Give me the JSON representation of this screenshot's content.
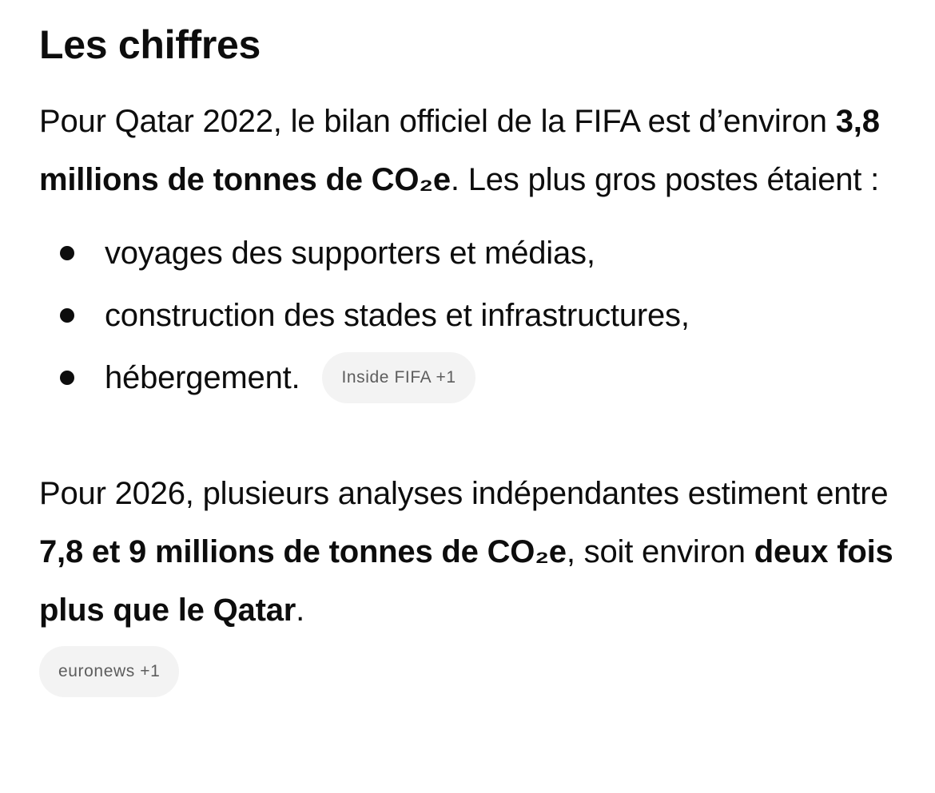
{
  "heading": "Les chiffres",
  "intro": {
    "part1": "Pour Qatar 2022, le bilan officiel de la FIFA est d’environ ",
    "bold1": "3,8 millions de tonnes de CO₂e",
    "part2": ". Les plus gros postes étaient :"
  },
  "bullets": [
    "voyages des supporters et médias,",
    "construction des stades et infrastructures,",
    "hébergement."
  ],
  "source_chip_1": "Inside FIFA +1",
  "second": {
    "part1": "Pour 2026, plusieurs analyses indépendantes estiment entre ",
    "bold1": "7,8 et 9 millions de tonnes de CO₂e",
    "part2": ", soit environ ",
    "bold2": "deux fois plus que le Qatar",
    "part3": "."
  },
  "source_chip_2": "euronews +1"
}
